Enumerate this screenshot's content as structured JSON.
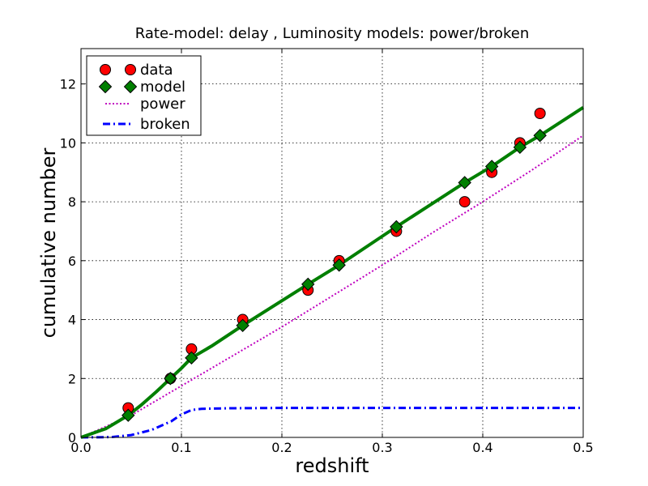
{
  "chart_data": {
    "type": "line",
    "title": "Rate-model: delay , Luminosity models: power/broken",
    "xlabel": "redshift",
    "ylabel": "cumulative number",
    "xlim": [
      0.0,
      0.5
    ],
    "ylim": [
      0,
      13.2
    ],
    "xticks": [
      "0.0",
      "0.1",
      "0.2",
      "0.3",
      "0.4",
      "0.5"
    ],
    "yticks": [
      "0",
      "2",
      "4",
      "6",
      "8",
      "10",
      "12"
    ],
    "xtick_values": [
      0.0,
      0.1,
      0.2,
      0.3,
      0.4,
      0.5
    ],
    "ytick_values": [
      0,
      2,
      4,
      6,
      8,
      10,
      12
    ],
    "grid": true,
    "legend_position": "top-left",
    "series": [
      {
        "name": "data",
        "kind": "markers",
        "marker": "circle",
        "color": "#ff0000",
        "x": [
          0.047,
          0.089,
          0.11,
          0.161,
          0.226,
          0.257,
          0.314,
          0.382,
          0.409,
          0.437,
          0.457
        ],
        "y": [
          1,
          2,
          3,
          4,
          5,
          6,
          7,
          8,
          9,
          10,
          11
        ]
      },
      {
        "name": "model",
        "kind": "markers+line",
        "marker": "diamond",
        "color": "#007f00",
        "x": [
          0.047,
          0.089,
          0.11,
          0.161,
          0.226,
          0.257,
          0.314,
          0.382,
          0.409,
          0.437,
          0.457
        ],
        "y": [
          0.75,
          2.0,
          2.7,
          3.8,
          5.2,
          5.85,
          7.15,
          8.65,
          9.2,
          9.85,
          10.25
        ],
        "line_x": [
          0.0,
          0.025,
          0.047,
          0.06,
          0.075,
          0.089,
          0.1,
          0.11,
          0.13,
          0.161,
          0.226,
          0.257,
          0.314,
          0.382,
          0.409,
          0.437,
          0.457,
          0.5
        ],
        "line_y": [
          0.0,
          0.3,
          0.75,
          1.1,
          1.55,
          2.0,
          2.35,
          2.7,
          3.1,
          3.8,
          5.2,
          5.85,
          7.15,
          8.65,
          9.2,
          9.85,
          10.25,
          11.2
        ]
      },
      {
        "name": "power",
        "kind": "line",
        "style": "dotted",
        "color": "#bf00bf",
        "x": [
          0.0,
          0.05,
          0.1,
          0.15,
          0.2,
          0.25,
          0.3,
          0.35,
          0.4,
          0.45,
          0.5
        ],
        "y": [
          0.0,
          0.75,
          1.75,
          2.75,
          3.75,
          4.8,
          5.85,
          6.95,
          8.0,
          9.1,
          10.25
        ]
      },
      {
        "name": "broken",
        "kind": "line",
        "style": "dashdot",
        "color": "#0000ff",
        "x": [
          0.0,
          0.03,
          0.05,
          0.07,
          0.09,
          0.1,
          0.11,
          0.12,
          0.15,
          0.2,
          0.3,
          0.4,
          0.5
        ],
        "y": [
          0.0,
          0.01,
          0.08,
          0.25,
          0.55,
          0.78,
          0.93,
          0.97,
          0.99,
          1.0,
          1.0,
          1.0,
          1.0
        ]
      }
    ]
  }
}
